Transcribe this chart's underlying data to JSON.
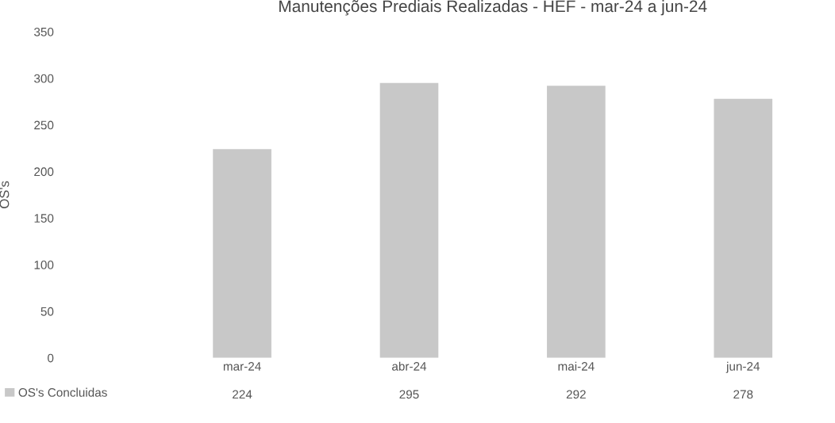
{
  "chart_data": {
    "type": "bar",
    "title": "Manutenções Prediais Realizadas - HEF - mar-24 a jun-24",
    "ylabel": "OS's",
    "categories": [
      "mar-24",
      "abr-24",
      "mai-24",
      "jun-24"
    ],
    "series": [
      {
        "name": "OS's Concluidas",
        "color": "#c8c8c8",
        "values": [
          224,
          295,
          292,
          278
        ]
      }
    ],
    "ylim": [
      0,
      350
    ],
    "yticks": [
      0,
      50,
      100,
      150,
      200,
      250,
      300,
      350
    ],
    "data_labels": true,
    "legend": "bottom left",
    "grid": false
  }
}
